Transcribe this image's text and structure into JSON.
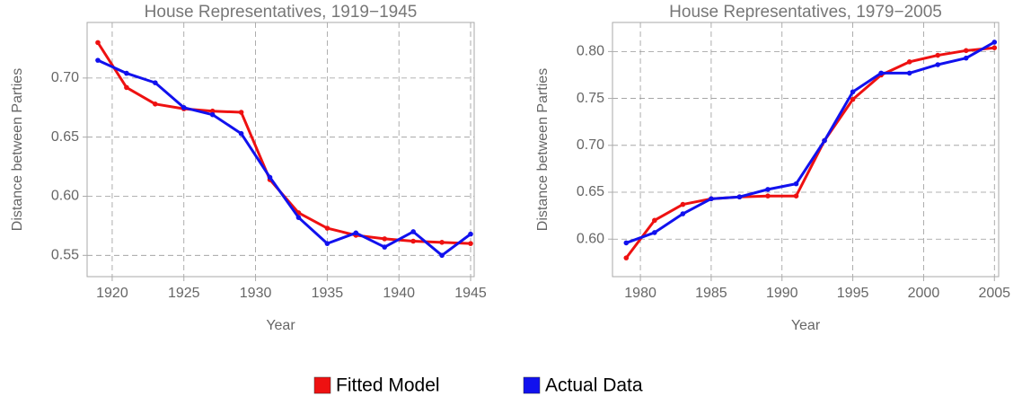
{
  "chart_data": [
    {
      "type": "line",
      "title": "House Representatives, 1919−1945",
      "x_label": "Year",
      "y_label": "Distance between Parties",
      "x": [
        1919,
        1921,
        1923,
        1925,
        1927,
        1929,
        1931,
        1933,
        1935,
        1937,
        1939,
        1941,
        1943,
        1945
      ],
      "series": [
        {
          "name": "Fitted Model",
          "color": "#ee1111",
          "values": [
            0.73,
            0.692,
            0.678,
            0.674,
            0.672,
            0.671,
            0.614,
            0.586,
            0.573,
            0.567,
            0.564,
            0.562,
            0.561,
            0.56
          ]
        },
        {
          "name": "Actual Data",
          "color": "#1111ee",
          "values": [
            0.715,
            0.704,
            0.696,
            0.675,
            0.669,
            0.653,
            0.616,
            0.582,
            0.56,
            0.569,
            0.557,
            0.57,
            0.55,
            0.568
          ]
        }
      ],
      "xlim": [
        1918.25,
        1945.25
      ],
      "xticks": [
        1920,
        1925,
        1930,
        1935,
        1940,
        1945
      ],
      "ylim": [
        0.532,
        0.747
      ],
      "yticks": [
        0.55,
        {
          "value": 0.6,
          "label": "0.60"
        },
        0.65,
        {
          "value": 0.7,
          "label": "0.70"
        }
      ],
      "grid": true
    },
    {
      "type": "line",
      "title": "House Representatives, 1979−2005",
      "x_label": "Year",
      "y_label": "Distance between Parties",
      "x": [
        1979,
        1981,
        1983,
        1985,
        1987,
        1989,
        1991,
        1993,
        1995,
        1997,
        1999,
        2001,
        2003,
        2005
      ],
      "series": [
        {
          "name": "Fitted Model",
          "color": "#ee1111",
          "values": [
            0.58,
            0.62,
            0.637,
            0.643,
            0.645,
            0.646,
            0.646,
            0.705,
            0.749,
            0.775,
            0.789,
            0.796,
            0.801,
            0.804
          ]
        },
        {
          "name": "Actual Data",
          "color": "#1111ee",
          "values": [
            0.596,
            0.607,
            0.627,
            0.643,
            0.645,
            0.653,
            0.659,
            0.705,
            0.757,
            0.777,
            0.777,
            0.786,
            0.793,
            0.81
          ]
        }
      ],
      "xlim": [
        1978.03,
        2005.3
      ],
      "xticks": [
        1980,
        1985,
        1990,
        1995,
        2000,
        2005
      ],
      "ylim": [
        0.56,
        0.831
      ],
      "yticks": [
        {
          "value": 0.6,
          "label": "0.60"
        },
        0.65,
        {
          "value": 0.7,
          "label": "0.70"
        },
        0.75,
        {
          "value": 0.8,
          "label": "0.80"
        }
      ],
      "grid": true
    }
  ]
}
